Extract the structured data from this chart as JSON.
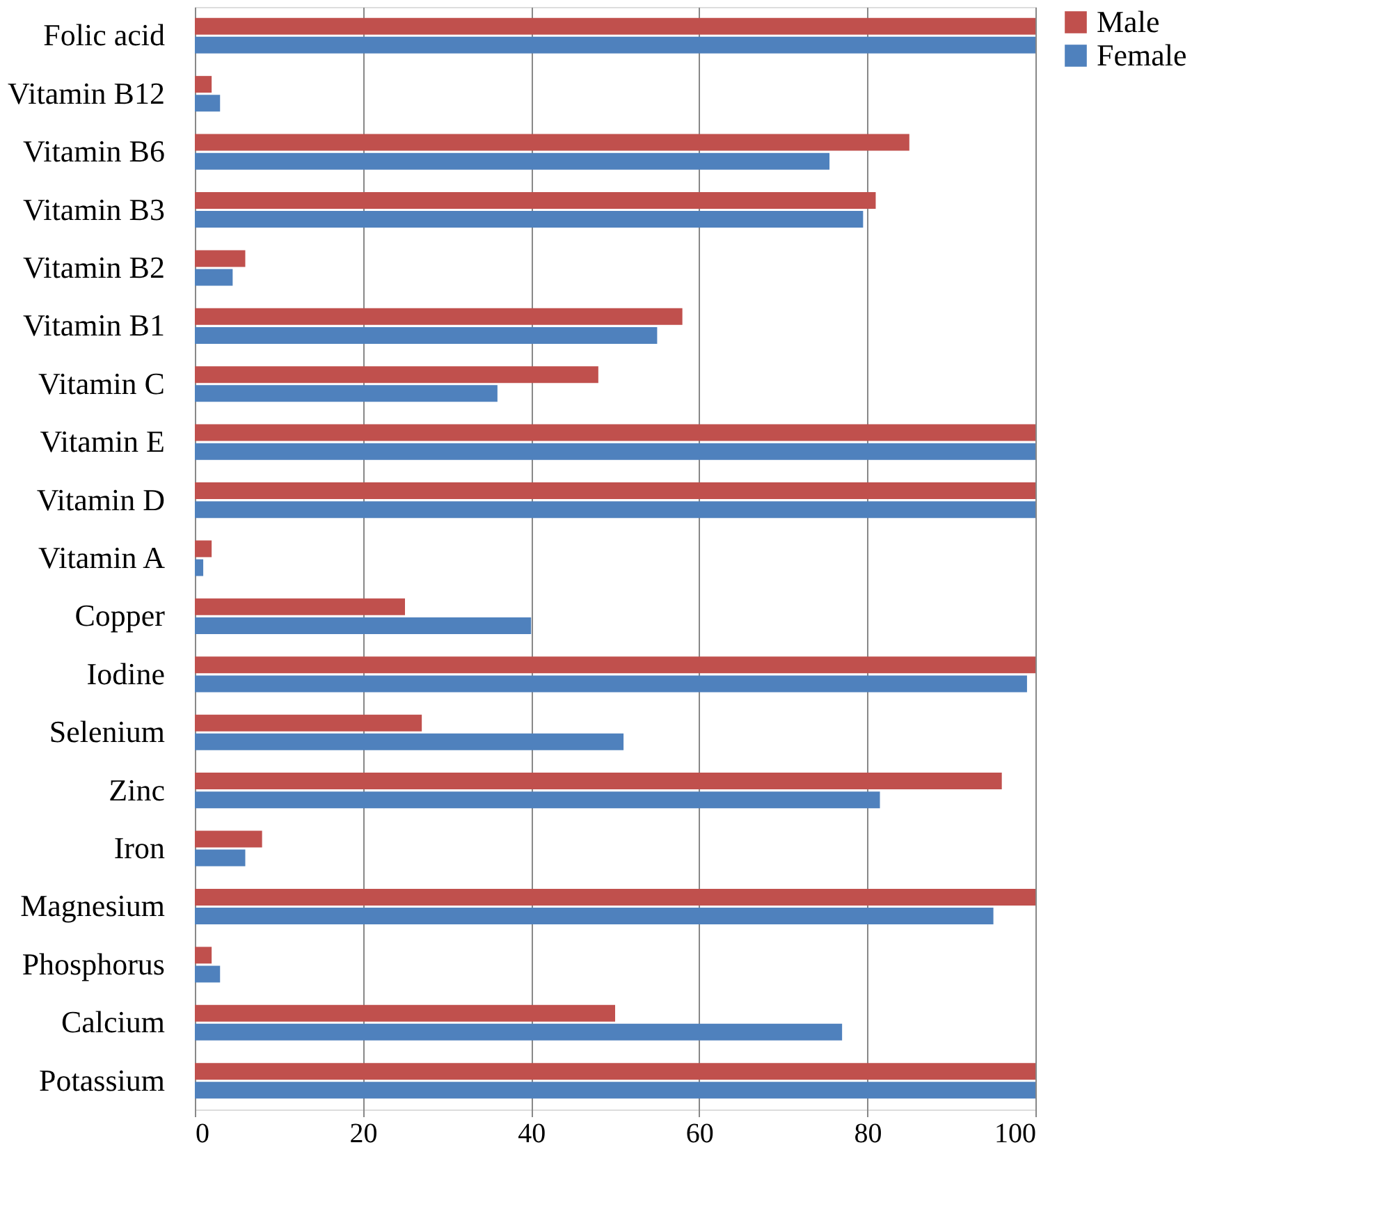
{
  "chart_data": {
    "type": "bar",
    "orientation": "horizontal",
    "categories": [
      "Folic acid",
      "Vitamin B12",
      "Vitamin B6",
      "Vitamin B3",
      "Vitamin B2",
      "Vitamin B1",
      "Vitamin C",
      "Vitamin E",
      "Vitamin D",
      "Vitamin A",
      "Copper",
      "Iodine",
      "Selenium",
      "Zinc",
      "Iron",
      "Magnesium",
      "Phosphorus",
      "Calcium",
      "Potassium"
    ],
    "series": [
      {
        "name": "Male",
        "color": "#c0504d",
        "values": [
          100,
          2,
          85,
          81,
          6,
          58,
          48,
          100,
          100,
          2,
          25,
          100,
          27,
          96,
          8,
          100,
          2,
          50,
          100
        ]
      },
      {
        "name": "Female",
        "color": "#4f81bd",
        "values": [
          100,
          3,
          75.5,
          79.5,
          4.5,
          55,
          36,
          100,
          100,
          1,
          40,
          99,
          51,
          81.5,
          6,
          95,
          3,
          77,
          100
        ]
      }
    ],
    "xlim": [
      0,
      100
    ],
    "xticks": [
      0,
      20,
      40,
      60,
      80,
      100
    ],
    "grid": "x",
    "legend": "right"
  }
}
